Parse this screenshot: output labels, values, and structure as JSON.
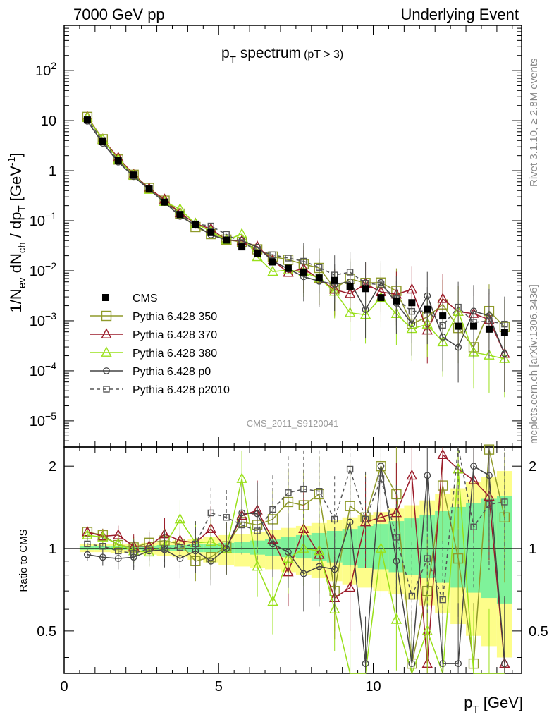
{
  "header": {
    "left": "7000 GeV pp",
    "right": "Underlying Event"
  },
  "side_text": {
    "rivet": "Rivet 3.1.10, ≥ 2.8M events",
    "mcplots": "mcplots.cern.ch [arXiv:1306.3436]"
  },
  "plot_title": {
    "main": "p",
    "sub": "T",
    "rest": " spectrum",
    "cut": "(pT >  3)"
  },
  "analysis_label": "CMS_2011_S9120041",
  "ylabel_main": {
    "a": "1/N",
    "b": "ev",
    "c": " dN",
    "d": "ch",
    "e": " / dp",
    "f": "T",
    "g": " [GeV",
    "h": "-1",
    "i": "]"
  },
  "ylabel_ratio": "Ratio to CMS",
  "xlabel": {
    "a": "p",
    "b": "T",
    "c": " [GeV]"
  },
  "colors": {
    "cms": "#000000",
    "p350": "#8f9a2a",
    "p370": "#9b1b2a",
    "p380": "#99e01a",
    "p0": "#444444",
    "p2010": "#555555",
    "band_stat": "#7ff29a",
    "band_tot": "#fdfd8a"
  },
  "chart_data": {
    "type": "line",
    "xlim": [
      0,
      14.8
    ],
    "ylim_main": [
      3e-06,
      800
    ],
    "ylog_main": true,
    "ylim_ratio": [
      0.35,
      2.35
    ],
    "ylog_ratio": true,
    "x_ticks": [
      0,
      5,
      10
    ],
    "y_ticks_main": [
      {
        "v": 100,
        "label": "10",
        "sup": "2"
      },
      {
        "v": 10,
        "label": "10",
        "sup": ""
      },
      {
        "v": 1,
        "label": "1",
        "sup": ""
      },
      {
        "v": 0.1,
        "label": "10",
        "sup": "−1"
      },
      {
        "v": 0.01,
        "label": "10",
        "sup": "−2"
      },
      {
        "v": 0.001,
        "label": "10",
        "sup": "−3"
      },
      {
        "v": 0.0001,
        "label": "10",
        "sup": "−4"
      },
      {
        "v": 1e-05,
        "label": "10",
        "sup": "−5"
      }
    ],
    "y_ticks_ratio": [
      {
        "v": 2,
        "label": "2"
      },
      {
        "v": 1,
        "label": "1"
      },
      {
        "v": 0.5,
        "label": "0.5"
      }
    ],
    "x": [
      0.75,
      1.25,
      1.75,
      2.25,
      2.75,
      3.25,
      3.75,
      4.25,
      4.75,
      5.25,
      5.75,
      6.25,
      6.75,
      7.25,
      7.75,
      8.25,
      8.75,
      9.25,
      9.75,
      10.25,
      10.75,
      11.25,
      11.75,
      12.25,
      12.75,
      13.25,
      13.75,
      14.25
    ],
    "cms": [
      10.3,
      3.8,
      1.62,
      0.82,
      0.43,
      0.235,
      0.133,
      0.083,
      0.058,
      0.041,
      0.03,
      0.022,
      0.015,
      0.0112,
      0.0094,
      0.0072,
      0.0064,
      0.0048,
      0.0044,
      0.0029,
      0.0025,
      0.0023,
      0.0017,
      0.00125,
      0.00078,
      0.00078,
      0.00068,
      0.00058
    ],
    "band_total": [
      [
        0.97,
        1.04
      ],
      [
        0.97,
        1.04
      ],
      [
        0.96,
        1.04
      ],
      [
        0.96,
        1.04
      ],
      [
        0.95,
        1.05
      ],
      [
        0.94,
        1.06
      ],
      [
        0.93,
        1.07
      ],
      [
        0.91,
        1.08
      ],
      [
        0.89,
        1.1
      ],
      [
        0.87,
        1.12
      ],
      [
        0.86,
        1.13
      ],
      [
        0.85,
        1.15
      ],
      [
        0.84,
        1.17
      ],
      [
        0.82,
        1.19
      ],
      [
        0.8,
        1.21
      ],
      [
        0.78,
        1.24
      ],
      [
        0.76,
        1.27
      ],
      [
        0.74,
        1.3
      ],
      [
        0.72,
        1.33
      ],
      [
        0.7,
        1.36
      ],
      [
        0.68,
        1.4
      ],
      [
        0.65,
        1.44
      ],
      [
        0.62,
        1.5
      ],
      [
        0.58,
        1.58
      ],
      [
        0.53,
        1.66
      ],
      [
        0.48,
        1.75
      ],
      [
        0.44,
        1.83
      ],
      [
        0.4,
        1.92
      ]
    ],
    "band_stat": [
      [
        0.99,
        1.02
      ],
      [
        0.99,
        1.02
      ],
      [
        0.99,
        1.02
      ],
      [
        0.99,
        1.02
      ],
      [
        0.98,
        1.02
      ],
      [
        0.98,
        1.03
      ],
      [
        0.98,
        1.03
      ],
      [
        0.97,
        1.04
      ],
      [
        0.97,
        1.04
      ],
      [
        0.96,
        1.05
      ],
      [
        0.96,
        1.06
      ],
      [
        0.95,
        1.07
      ],
      [
        0.94,
        1.08
      ],
      [
        0.93,
        1.1
      ],
      [
        0.92,
        1.12
      ],
      [
        0.9,
        1.14
      ],
      [
        0.89,
        1.16
      ],
      [
        0.87,
        1.18
      ],
      [
        0.85,
        1.21
      ],
      [
        0.84,
        1.23
      ],
      [
        0.82,
        1.26
      ],
      [
        0.8,
        1.29
      ],
      [
        0.78,
        1.33
      ],
      [
        0.75,
        1.37
      ],
      [
        0.72,
        1.42
      ],
      [
        0.69,
        1.47
      ],
      [
        0.66,
        1.52
      ],
      [
        0.63,
        1.56
      ]
    ],
    "series": [
      {
        "name": "Pythia 6.428 350",
        "key": "p350",
        "marker": "square",
        "dash": false,
        "ratio": [
          1.15,
          1.12,
          1.03,
          1.01,
          1.05,
          1.07,
          1.04,
          0.9,
          0.93,
          1.02,
          1.25,
          1.22,
          1.28,
          1.48,
          1.44,
          1.58,
          0.7,
          1.43,
          1.3,
          2.0,
          1.58,
          0.38,
          0.7,
          1.7,
          0.92,
          0.38,
          2.3,
          1.3
        ]
      },
      {
        "name": "Pythia 6.428 370",
        "key": "p370",
        "marker": "triangle",
        "dash": false,
        "ratio": [
          1.15,
          1.11,
          1.12,
          1.02,
          1.02,
          1.13,
          1.07,
          1.05,
          1.18,
          1.0,
          1.32,
          1.38,
          1.08,
          0.82,
          1.18,
          0.95,
          0.66,
          0.72,
          1.25,
          1.3,
          1.35,
          1.85,
          0.38,
          2.2,
          1.95,
          1.78,
          1.55,
          0.38
        ]
      },
      {
        "name": "Pythia 6.428 380",
        "key": "p380",
        "marker": "triangle",
        "dash": false,
        "ratio": [
          1.12,
          1.1,
          1.04,
          0.98,
          0.97,
          1.02,
          1.28,
          1.05,
          1.06,
          1.0,
          1.8,
          0.86,
          0.64,
          0.92,
          1.0,
          0.98,
          0.6,
          0.3,
          0.3,
          1.0,
          0.55,
          0.3,
          0.5,
          0.3,
          1.95,
          0.3,
          0.3,
          0.3
        ]
      },
      {
        "name": "Pythia 6.428 p0",
        "key": "p0",
        "marker": "circle",
        "dash": false,
        "ratio": [
          0.95,
          0.93,
          0.92,
          0.93,
          0.98,
          0.99,
          0.92,
          0.98,
          0.9,
          1.0,
          1.35,
          1.34,
          1.04,
          0.97,
          0.81,
          0.86,
          0.84,
          1.25,
          0.38,
          2.0,
          0.9,
          0.38,
          1.85,
          0.38,
          0.38,
          2.0,
          1.85,
          0.38
        ]
      },
      {
        "name": "Pythia 6.428 p2010",
        "key": "p2010",
        "marker": "square",
        "dash": true,
        "ratio": [
          1.04,
          1.02,
          0.98,
          0.96,
          1.0,
          1.0,
          1.01,
          1.04,
          1.35,
          1.3,
          1.22,
          1.16,
          1.39,
          1.6,
          1.65,
          1.62,
          1.28,
          1.95,
          1.28,
          1.8,
          1.1,
          0.67,
          0.92,
          0.65,
          2.4,
          1.2,
          1.45,
          1.48
        ]
      }
    ]
  }
}
